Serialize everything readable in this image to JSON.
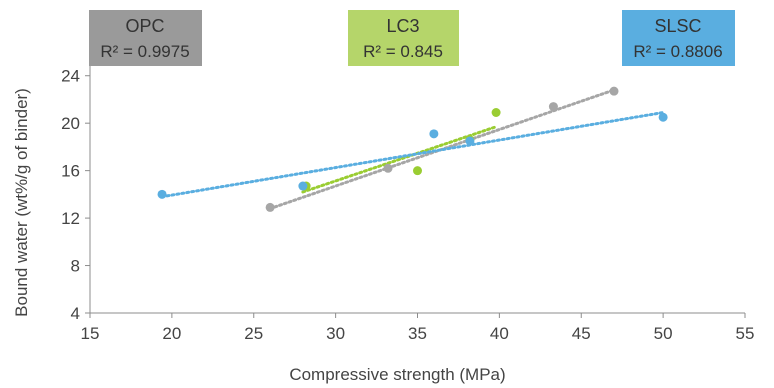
{
  "chart_data": {
    "type": "scatter",
    "title": "",
    "xlabel": "Compressive strength (MPa)",
    "ylabel": "Bound water (wt%/g of binder)",
    "xlim": [
      15,
      55
    ],
    "ylim": [
      4,
      26
    ],
    "x_ticks": [
      15,
      20,
      25,
      30,
      35,
      40,
      45,
      50,
      55
    ],
    "y_ticks": [
      4,
      8,
      12,
      16,
      20,
      24
    ],
    "grid": false,
    "legend_position": "top",
    "series": [
      {
        "name": "OPC",
        "r2_label": "R² = 0.9975",
        "color": "#a6a6a6",
        "box_color": "#9a9a9a",
        "points": [
          {
            "x": 26.0,
            "y": 12.9
          },
          {
            "x": 33.2,
            "y": 16.2
          },
          {
            "x": 43.3,
            "y": 21.4
          },
          {
            "x": 47.0,
            "y": 22.7
          }
        ],
        "trendline": {
          "x": [
            26.0,
            47.0
          ],
          "y": [
            12.8,
            22.8
          ]
        }
      },
      {
        "name": "LC3",
        "r2_label": "R² = 0.845",
        "color": "#9acd32",
        "box_color": "#b5d56a",
        "points": [
          {
            "x": 28.2,
            "y": 14.7
          },
          {
            "x": 35.0,
            "y": 16.0
          },
          {
            "x": 38.2,
            "y": 18.6
          },
          {
            "x": 39.8,
            "y": 20.9
          }
        ],
        "trendline": {
          "x": [
            28.0,
            39.8
          ],
          "y": [
            14.2,
            19.7
          ]
        }
      },
      {
        "name": "SLSC",
        "r2_label": "R² = 0.8806",
        "color": "#5aaee0",
        "box_color": "#5aaee0",
        "points": [
          {
            "x": 19.4,
            "y": 14.0
          },
          {
            "x": 28.0,
            "y": 14.7
          },
          {
            "x": 36.0,
            "y": 19.1
          },
          {
            "x": 38.2,
            "y": 18.5
          },
          {
            "x": 50.0,
            "y": 20.5
          }
        ],
        "trendline": {
          "x": [
            19.4,
            50.0
          ],
          "y": [
            13.8,
            20.9
          ]
        }
      }
    ]
  }
}
